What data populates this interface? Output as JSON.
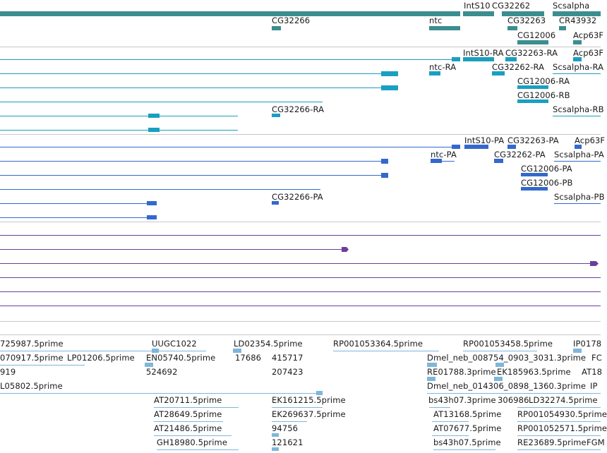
{
  "colors": {
    "gene": "#3b8d8f",
    "flybase_transcript": "#1a9fc1",
    "refseq_transcript": "#3369cc",
    "purple_track": "#6a3f9a",
    "est_track": "#7fb6dc",
    "divider": "#c8c8c8"
  },
  "gene_track": {
    "labels": [
      "IntS10",
      "CG32262",
      "Scsalpha",
      "CG32266",
      "ntc",
      "CG32263",
      "CR43932",
      "CG12006",
      "Acp63F"
    ]
  },
  "flybase_track": {
    "labels": [
      "IntS10-RA",
      "CG32263-RA",
      "Acp63F",
      "ntc-RA",
      "CG32262-RA",
      "Scsalpha-RA",
      "CG12006-RA",
      "CG12006-RB",
      "Scsalpha-RB",
      "CG32266-RA"
    ]
  },
  "refseq_track": {
    "labels": [
      "IntS10-PA",
      "CG32263-PA",
      "Acp63F",
      "ntc-PA",
      "CG32262-PA",
      "Scsalpha-PA",
      "CG12006-PA",
      "CG12006-PB",
      "Scsalpha-PB",
      "CG32266-PA"
    ]
  },
  "est_track": {
    "labels": [
      "725987.5prime",
      "UUGC1022",
      "LD02354.5prime",
      "RP001053364.5prime",
      "RP001053458.5prime",
      "IP0178",
      "070917.5prime",
      "LP01206.5prime",
      "EN05740.5prime",
      "17686",
      "415717",
      "Dmel_neb_008754_0903_3031.3prime",
      "FC",
      "919",
      "524692",
      "207423",
      "RE01788.3prime",
      "EK185963.5prime",
      "AT18",
      "L05802.5prime",
      "Dmel_neb_014306_0898_1360.3prime",
      "IP",
      "AT20711.5prime",
      "EK161215.5prime",
      "bs43h07.3prime",
      "306986",
      "LD32274.5prime",
      "AT28649.5prime",
      "EK269637.5prime",
      "AT13168.5prime",
      "RP001054930.5prime",
      "AT21486.5prime",
      "94756",
      "AT07677.5prime",
      "RP001052571.5prime",
      "GH18980.5prime",
      "121621",
      "bs43h07.5prime",
      "RE23689.5prime",
      "FGM"
    ]
  }
}
